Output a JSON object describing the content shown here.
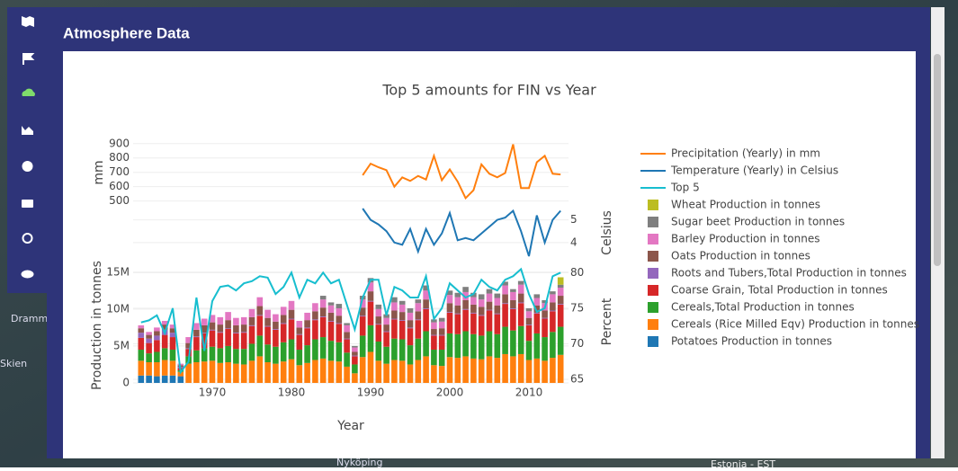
{
  "header": {
    "title": "Atmosphere Data"
  },
  "map_labels": [
    "Drammen",
    "Skien",
    "Nyköping",
    "Estonia - EST"
  ],
  "chart_data": {
    "type": "bar",
    "title": "Top 5 amounts for FIN vs Year",
    "xlabel": "Year",
    "ylabel": "Production in tonnes",
    "y2label": "Percent",
    "y3label": "mm",
    "y4label": "Celsius",
    "grid": true,
    "x": [
      1961,
      1962,
      1963,
      1964,
      1965,
      1966,
      1967,
      1968,
      1969,
      1970,
      1971,
      1972,
      1973,
      1974,
      1975,
      1976,
      1977,
      1978,
      1979,
      1980,
      1981,
      1982,
      1983,
      1984,
      1985,
      1986,
      1987,
      1988,
      1989,
      1990,
      1991,
      1992,
      1993,
      1994,
      1995,
      1996,
      1997,
      1998,
      1999,
      2000,
      2001,
      2002,
      2003,
      2004,
      2005,
      2006,
      2007,
      2008,
      2009,
      2010,
      2011,
      2012,
      2013,
      2014
    ],
    "xlim": [
      1960,
      2015
    ],
    "xticks": [
      1970,
      1980,
      1990,
      2000,
      2010
    ],
    "ylim": [
      0,
      15700000.0
    ],
    "yticks": [
      0,
      {
        "value": 5000000.0,
        "label": "5M"
      },
      {
        "value": 10000000.0,
        "label": "10M"
      },
      {
        "value": 15000000.0,
        "label": "15M"
      }
    ],
    "y2lim": [
      64.5,
      80.8
    ],
    "y2ticks": [
      65,
      70,
      75,
      80
    ],
    "y3lim": [
      460,
      930
    ],
    "y3ticks": [
      500,
      600,
      700,
      800,
      900
    ],
    "y4lim": [
      3.2,
      5.5
    ],
    "y4ticks": [
      4,
      5
    ],
    "series": [
      {
        "name": "Precipitation (Yearly) in mm",
        "type": "line",
        "axis": "y3",
        "color": "#ff7f0e",
        "values": [
          null,
          null,
          null,
          null,
          null,
          null,
          null,
          null,
          null,
          null,
          null,
          null,
          null,
          null,
          null,
          null,
          null,
          null,
          null,
          null,
          null,
          null,
          null,
          null,
          null,
          null,
          null,
          null,
          680,
          760,
          735,
          715,
          600,
          665,
          640,
          675,
          650,
          815,
          645,
          720,
          635,
          520,
          575,
          755,
          690,
          665,
          695,
          895,
          590,
          590,
          770,
          815,
          690,
          685
        ]
      },
      {
        "name": "Temperature (Yearly) in Celsius",
        "type": "line",
        "axis": "y4",
        "color": "#1f77b4",
        "values": [
          null,
          null,
          null,
          null,
          null,
          null,
          null,
          null,
          null,
          null,
          null,
          null,
          null,
          null,
          null,
          null,
          null,
          null,
          null,
          null,
          null,
          null,
          null,
          null,
          null,
          null,
          null,
          null,
          5.5,
          5.0,
          4.8,
          4.5,
          4.0,
          3.9,
          4.6,
          3.6,
          4.6,
          3.9,
          4.4,
          5.3,
          4.1,
          4.2,
          4.1,
          4.4,
          4.7,
          5.0,
          5.1,
          5.4,
          4.5,
          3.4,
          5.2,
          4.0,
          5.0,
          5.4
        ]
      },
      {
        "name": "Top 5",
        "type": "line",
        "axis": "y2",
        "color": "#17becf",
        "values": [
          73.0,
          73.3,
          74.0,
          71.5,
          75.0,
          66.0,
          67.5,
          76.5,
          69.0,
          76.0,
          78.0,
          78.2,
          77.5,
          78.5,
          78.8,
          79.5,
          79.3,
          77.0,
          78.0,
          80.0,
          76.5,
          79.0,
          78.5,
          80.0,
          78.5,
          79.0,
          75.5,
          72.0,
          76.5,
          79.0,
          79.0,
          74.0,
          78.0,
          77.5,
          76.5,
          76.5,
          79.5,
          73.5,
          75.0,
          78.5,
          77.5,
          76.5,
          77.0,
          79.0,
          78.0,
          77.5,
          79.0,
          79.5,
          80.5,
          77.0,
          74.5,
          75.0,
          79.5,
          80.0
        ]
      },
      {
        "name": "Wheat Production in tonnes",
        "type": "bar",
        "axis": "y",
        "color": "#bcbd22",
        "values": [
          null,
          null,
          null,
          null,
          null,
          null,
          null,
          null,
          null,
          null,
          null,
          null,
          null,
          null,
          null,
          null,
          null,
          null,
          null,
          null,
          null,
          null,
          null,
          null,
          null,
          null,
          null,
          null,
          null,
          null,
          null,
          null,
          null,
          null,
          null,
          null,
          null,
          null,
          null,
          null,
          null,
          null,
          null,
          null,
          null,
          null,
          null,
          null,
          null,
          null,
          null,
          null,
          null,
          1000000.0
        ]
      },
      {
        "name": "Sugar beet Production in tonnes",
        "type": "bar",
        "axis": "y",
        "color": "#7f7f7f",
        "values": [
          null,
          null,
          null,
          null,
          null,
          null,
          null,
          null,
          null,
          null,
          null,
          null,
          null,
          null,
          null,
          null,
          null,
          null,
          null,
          null,
          null,
          null,
          null,
          500000.0,
          400000.0,
          600000.0,
          300000.0,
          200000.0,
          500000.0,
          600000.0,
          600000.0,
          500000.0,
          700000.0,
          500000.0,
          600000.0,
          500000.0,
          700000.0,
          400000.0,
          500000.0,
          600000.0,
          600000.0,
          700000.0,
          600000.0,
          700000.0,
          600000.0,
          600000.0,
          500000.0,
          400000.0,
          500000.0,
          400000.0,
          500000.0,
          400000.0,
          400000.0,
          400000.0
        ]
      },
      {
        "name": "Barley Production in tonnes",
        "type": "bar",
        "axis": "y",
        "color": "#e377c2",
        "values": [
          400000.0,
          400000.0,
          500000.0,
          500000.0,
          500000.0,
          200000.0,
          800000.0,
          900000.0,
          900000.0,
          1000000.0,
          1000000.0,
          1100000.0,
          1000000.0,
          1000000.0,
          1100000.0,
          1200000.0,
          1100000.0,
          1000000.0,
          1100000.0,
          1200000.0,
          900000.0,
          1000000.0,
          1100000.0,
          1100000.0,
          1000000.0,
          1000000.0,
          900000.0,
          600000.0,
          1100000.0,
          1200000.0,
          1000000.0,
          900000.0,
          1100000.0,
          1000000.0,
          1000000.0,
          1100000.0,
          1200000.0,
          900000.0,
          900000.0,
          1100000.0,
          1100000.0,
          1100000.0,
          1000000.0,
          1000000.0,
          1100000.0,
          1000000.0,
          1200000.0,
          1100000.0,
          1200000.0,
          900000.0,
          1000000.0,
          1000000.0,
          1100000.0,
          1100000.0
        ]
      },
      {
        "name": "Oats Production in tonnes",
        "type": "bar",
        "axis": "y",
        "color": "#8c564b",
        "values": [
          600000.0,
          500000.0,
          600000.0,
          700000.0,
          600000.0,
          200000.0,
          700000.0,
          900000.0,
          1000000.0,
          1000000.0,
          1000000.0,
          1100000.0,
          1000000.0,
          1000000.0,
          1100000.0,
          1200000.0,
          1100000.0,
          1000000.0,
          1100000.0,
          1200000.0,
          900000.0,
          1000000.0,
          1100000.0,
          1200000.0,
          1100000.0,
          1000000.0,
          900000.0,
          500000.0,
          1100000.0,
          1300000.0,
          1000000.0,
          900000.0,
          1100000.0,
          1100000.0,
          1000000.0,
          1100000.0,
          1200000.0,
          800000.0,
          900000.0,
          1200000.0,
          1100000.0,
          1200000.0,
          1100000.0,
          1100000.0,
          1100000.0,
          1100000.0,
          1200000.0,
          1100000.0,
          1200000.0,
          900000.0,
          1000000.0,
          1000000.0,
          1100000.0,
          1100000.0
        ]
      },
      {
        "name": "Roots and Tubers,Total Production in tonnes",
        "type": "bar",
        "axis": "y",
        "color": "#9467bd",
        "values": [
          700000.0,
          600000.0,
          600000.0,
          700000.0,
          600000.0,
          200000.0,
          100000.0,
          100000.0,
          100000.0,
          100000.0,
          100000.0,
          100000.0,
          100000.0,
          100000.0,
          100000.0,
          100000.0,
          100000.0,
          100000.0,
          100000.0,
          100000.0,
          100000.0,
          100000.0,
          100000.0,
          100000.0,
          100000.0,
          100000.0,
          100000.0,
          100000.0,
          100000.0,
          100000.0,
          100000.0,
          100000.0,
          100000.0,
          100000.0,
          100000.0,
          100000.0,
          100000.0,
          100000.0,
          100000.0,
          100000.0,
          100000.0,
          100000.0,
          100000.0,
          100000.0,
          100000.0,
          100000.0,
          100000.0,
          100000.0,
          100000.0,
          100000.0,
          100000.0,
          100000.0,
          100000.0,
          100000.0
        ]
      },
      {
        "name": "Coarse Grain, Total Production in tonnes",
        "type": "bar",
        "axis": "y",
        "color": "#d62728",
        "values": [
          1600000.0,
          1400000.0,
          1600000.0,
          1800000.0,
          1700000.0,
          300000.0,
          1000000.0,
          1800000.0,
          2000000.0,
          2200000.0,
          2100000.0,
          2300000.0,
          2100000.0,
          2200000.0,
          2400000.0,
          2700000.0,
          2400000.0,
          2300000.0,
          2500000.0,
          2700000.0,
          2000000.0,
          2300000.0,
          2600000.0,
          2700000.0,
          2600000.0,
          2500000.0,
          1800000.0,
          1100000.0,
          2600000.0,
          3200000.0,
          2300000.0,
          2000000.0,
          2600000.0,
          2500000.0,
          2300000.0,
          2500000.0,
          3000000.0,
          1900000.0,
          1900000.0,
          2800000.0,
          2700000.0,
          2900000.0,
          2800000.0,
          2700000.0,
          2800000.0,
          2700000.0,
          3100000.0,
          2900000.0,
          3100000.0,
          2100000.0,
          2700000.0,
          2500000.0,
          2800000.0,
          3000000.0
        ]
      },
      {
        "name": "Cereals,Total Production in tonnes",
        "type": "bar",
        "axis": "y",
        "color": "#2ca02c",
        "values": [
          1500000.0,
          1200000.0,
          1400000.0,
          1600000.0,
          1500000.0,
          200000.0,
          1000000.0,
          1600000.0,
          1800000.0,
          1900000.0,
          2000000.0,
          2200000.0,
          2000000.0,
          2100000.0,
          2300000.0,
          2800000.0,
          2400000.0,
          2300000.0,
          2600000.0,
          2700000.0,
          2100000.0,
          2400000.0,
          2800000.0,
          2900000.0,
          2700000.0,
          2600000.0,
          1900000.0,
          1200000.0,
          2900000.0,
          3600000.0,
          2600000.0,
          2300000.0,
          2900000.0,
          2900000.0,
          2600000.0,
          2900000.0,
          3400000.0,
          2100000.0,
          2200000.0,
          3200000.0,
          3200000.0,
          3400000.0,
          3300000.0,
          3200000.0,
          3400000.0,
          3200000.0,
          3700000.0,
          3500000.0,
          3800000.0,
          2600000.0,
          3400000.0,
          3200000.0,
          3500000.0,
          3800000.0
        ]
      },
      {
        "name": "Cereals (Rice Milled Eqv) Production in tonnes",
        "type": "bar",
        "axis": "y",
        "color": "#ff7f0e",
        "values": [
          2000000.0,
          1800000.0,
          1900000.0,
          2100000.0,
          2000000.0,
          600000.0,
          2600000.0,
          2800000.0,
          2900000.0,
          3000000.0,
          2700000.0,
          2800000.0,
          2600000.0,
          2500000.0,
          3000000.0,
          3600000.0,
          2800000.0,
          2600000.0,
          2900000.0,
          3200000.0,
          2400000.0,
          2700000.0,
          3100000.0,
          3300000.0,
          3000000.0,
          2900000.0,
          2200000.0,
          1300000.0,
          3500000.0,
          4200000.0,
          3000000.0,
          2600000.0,
          3100000.0,
          3000000.0,
          2500000.0,
          3100000.0,
          3600000.0,
          2400000.0,
          2300000.0,
          3500000.0,
          3400000.0,
          3600000.0,
          3300000.0,
          3200000.0,
          3600000.0,
          3400000.0,
          3900000.0,
          3600000.0,
          3900000.0,
          3100000.0,
          3300000.0,
          3000000.0,
          3400000.0,
          3800000.0
        ]
      },
      {
        "name": "Potatoes Production in tonnes",
        "type": "bar",
        "axis": "y",
        "color": "#1f77b4",
        "values": [
          1000000.0,
          1000000.0,
          900000.0,
          1000000.0,
          1000000.0,
          900000.0,
          null,
          null,
          null,
          null,
          null,
          null,
          null,
          null,
          null,
          null,
          null,
          null,
          null,
          null,
          null,
          null,
          null,
          null,
          null,
          null,
          null,
          null,
          null,
          null,
          null,
          null,
          null,
          null,
          null,
          null,
          null,
          null,
          null,
          null,
          null,
          null,
          null,
          null,
          null,
          null,
          null,
          null,
          null,
          null,
          null,
          null,
          null,
          null
        ]
      }
    ]
  }
}
